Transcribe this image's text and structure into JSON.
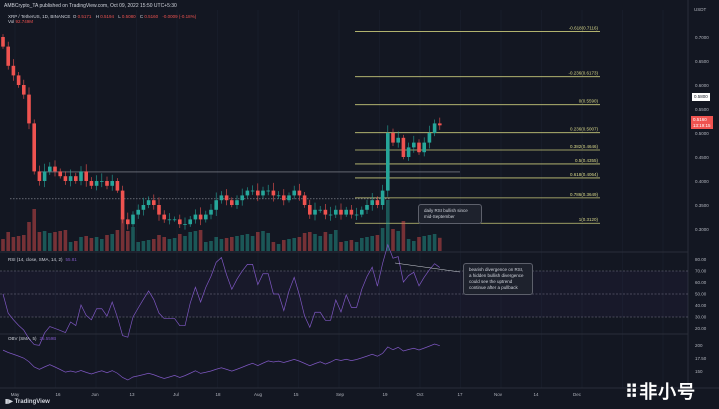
{
  "header": {
    "published": "AMBCrypto_TA published on TradingView.com, Oct 09, 2022 15:50 UTC+5:30"
  },
  "legend": {
    "symbol": "XRP / TetherUS, 1D, BINANCE",
    "o_label": "O",
    "o": "0.5171",
    "h_label": "H",
    "h": "0.5194",
    "l_label": "L",
    "l": "0.5080",
    "c_label": "C",
    "c": "0.5160",
    "change": "-0.0009 (-0.18%)",
    "vol_label": "Vol",
    "vol": "92.749M"
  },
  "price_axis": {
    "currency": "USDT",
    "crosshair": "0.5800",
    "last_price": "0.5160",
    "countdown": "13:19:15"
  },
  "rsi": {
    "label": "RSI (14, close, SMA, 14, 2)",
    "value": "55.81",
    "ticks": [
      "80.00",
      "70.00",
      "60.00",
      "50.00",
      "40.00",
      "30.00",
      "20.00"
    ]
  },
  "obv": {
    "label": "OBV (SMA, 5)",
    "value": "25.559B",
    "ticks": [
      "200",
      "17.50",
      "150"
    ]
  },
  "annotations": {
    "price_note": "daily RSI bullish since mid-September",
    "rsi_note": "bearish divergence on RSI, a hidden bullish divergence could see the uptrend continue after a pullback"
  },
  "footer": {
    "brand": "TradingView",
    "watermark": "非小号"
  },
  "colors": {
    "up": "#26a69a",
    "down": "#ef5350",
    "fib": "#c8c87a",
    "rsi": "#7e57c2",
    "bg": "#131722"
  },
  "chart_data": {
    "type": "candlestick",
    "title": "XRP / TetherUS, 1D, BINANCE",
    "ylim": [
      0.28,
      0.72
    ],
    "y_ticks": [
      "0.7000",
      "0.6500",
      "0.6000",
      "0.5500",
      "0.5000",
      "0.4500",
      "0.4000",
      "0.3500",
      "0.3000"
    ],
    "x_ticks": [
      "May",
      "16",
      "Jun",
      "13",
      "Jul",
      "18",
      "Aug",
      "15",
      "Sep",
      "19",
      "Oct",
      "17",
      "Nov",
      "14",
      "Dec"
    ],
    "interval_days": 2,
    "closes": [
      0.68,
      0.64,
      0.62,
      0.6,
      0.58,
      0.52,
      0.42,
      0.4,
      0.42,
      0.43,
      0.42,
      0.41,
      0.4,
      0.41,
      0.4,
      0.42,
      0.4,
      0.39,
      0.4,
      0.4,
      0.39,
      0.4,
      0.38,
      0.32,
      0.31,
      0.33,
      0.34,
      0.35,
      0.36,
      0.35,
      0.33,
      0.32,
      0.32,
      0.32,
      0.31,
      0.31,
      0.32,
      0.33,
      0.32,
      0.33,
      0.34,
      0.36,
      0.37,
      0.36,
      0.35,
      0.36,
      0.37,
      0.38,
      0.38,
      0.37,
      0.38,
      0.38,
      0.37,
      0.37,
      0.36,
      0.37,
      0.38,
      0.37,
      0.35,
      0.33,
      0.34,
      0.34,
      0.33,
      0.33,
      0.34,
      0.33,
      0.34,
      0.33,
      0.33,
      0.34,
      0.35,
      0.36,
      0.35,
      0.38,
      0.5,
      0.48,
      0.49,
      0.45,
      0.47,
      0.48,
      0.46,
      0.48,
      0.5,
      0.52,
      0.516
    ],
    "fib_levels": [
      {
        "label": "-0.618(0.7116)",
        "price": 0.7116
      },
      {
        "label": "-0.236(0.6173)",
        "price": 0.6173
      },
      {
        "label": "0(0.5590)",
        "price": 0.559
      },
      {
        "label": "0.236(0.5007)",
        "price": 0.5007
      },
      {
        "label": "0.382(0.4646)",
        "price": 0.4646
      },
      {
        "label": "0.5(0.4355)",
        "price": 0.4355
      },
      {
        "label": "0.618(0.4064)",
        "price": 0.4064
      },
      {
        "label": "0.786(0.3649)",
        "price": 0.3649
      },
      {
        "label": "1(0.3120)",
        "price": 0.312
      }
    ],
    "rsi_levels": [
      70,
      50,
      30
    ]
  }
}
